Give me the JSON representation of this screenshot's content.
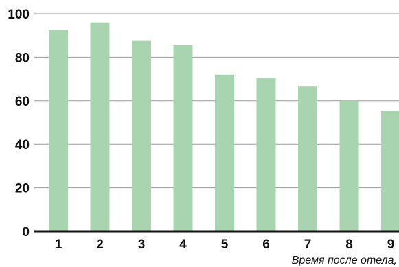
{
  "chart_data": {
    "type": "bar",
    "title": "",
    "xlabel": "Время после отела, ",
    "ylabel": "",
    "categories": [
      "1",
      "2",
      "3",
      "4",
      "5",
      "6",
      "7",
      "8",
      "9"
    ],
    "values": [
      92.5,
      96,
      87.5,
      85.5,
      72,
      70.5,
      66.5,
      60,
      55.5
    ],
    "ylim": [
      0,
      100
    ],
    "yticks": [
      0,
      20,
      40,
      60,
      80,
      100
    ],
    "grid": true,
    "bar_color": "#a8d4b0",
    "grid_color": "#9a9a9a",
    "axis_color": "#111111"
  }
}
